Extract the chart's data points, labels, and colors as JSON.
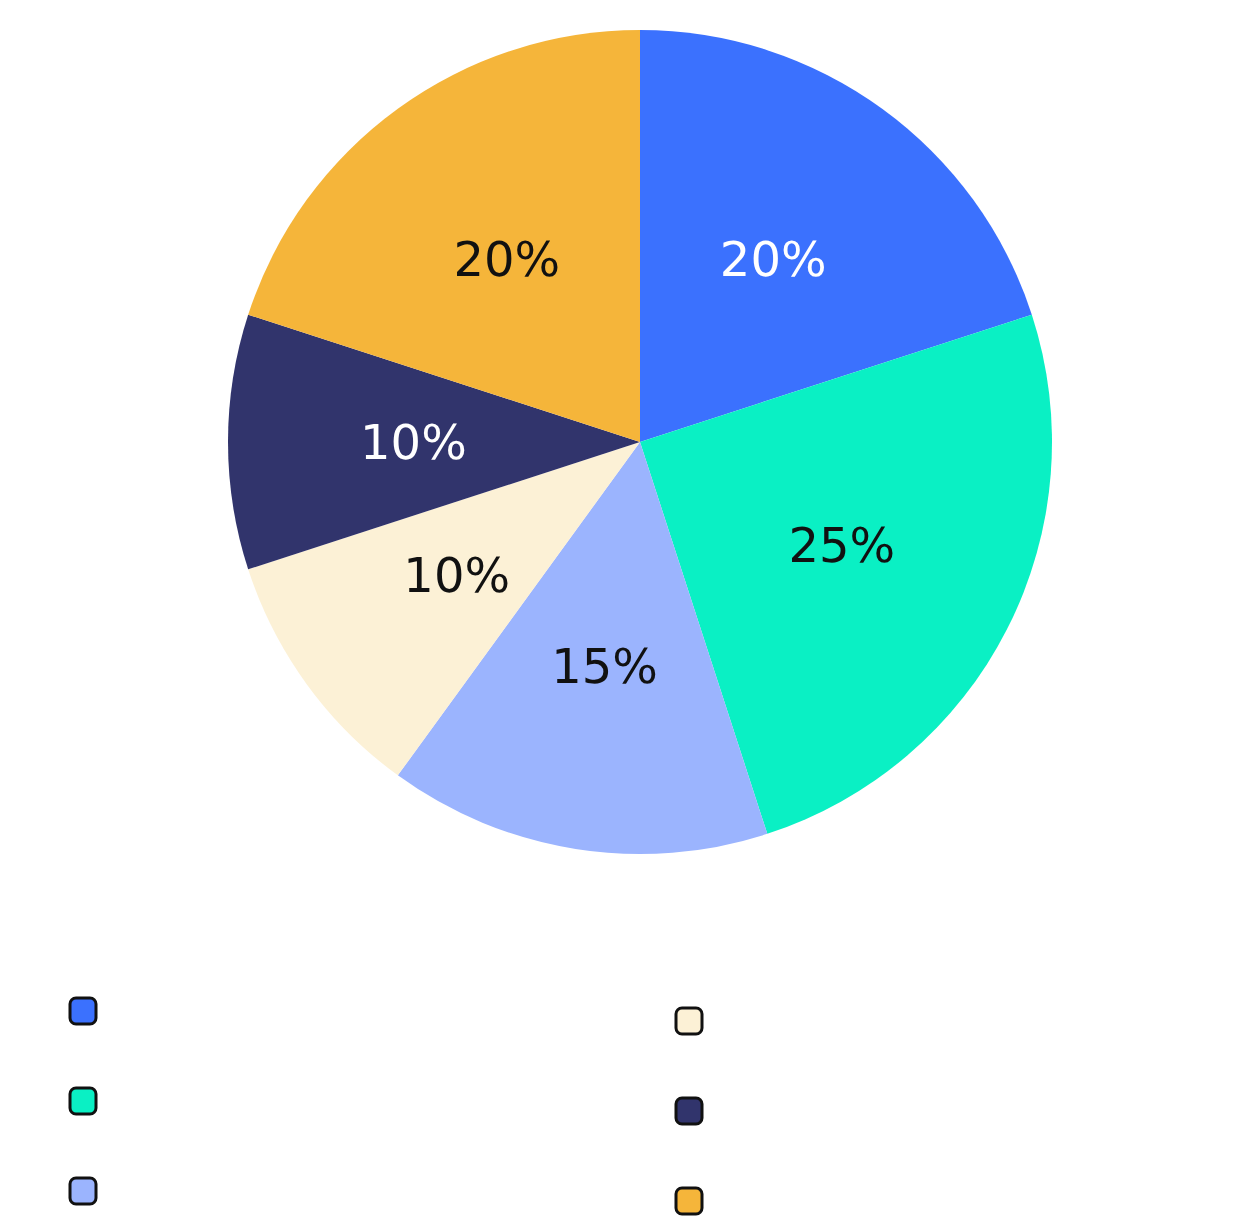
{
  "chart_data": {
    "type": "pie",
    "categories": [
      null,
      null,
      null,
      null,
      null,
      null
    ],
    "values": [
      20,
      25,
      15,
      10,
      10,
      20
    ],
    "value_labels": [
      "20%",
      "25%",
      "15%",
      "10%",
      "10%",
      "20%"
    ],
    "colors": [
      "#3b71fe",
      "#0af0c4",
      "#9bb4fe",
      "#fcf1d6",
      "#31346c",
      "#f5b53a"
    ]
  }
}
